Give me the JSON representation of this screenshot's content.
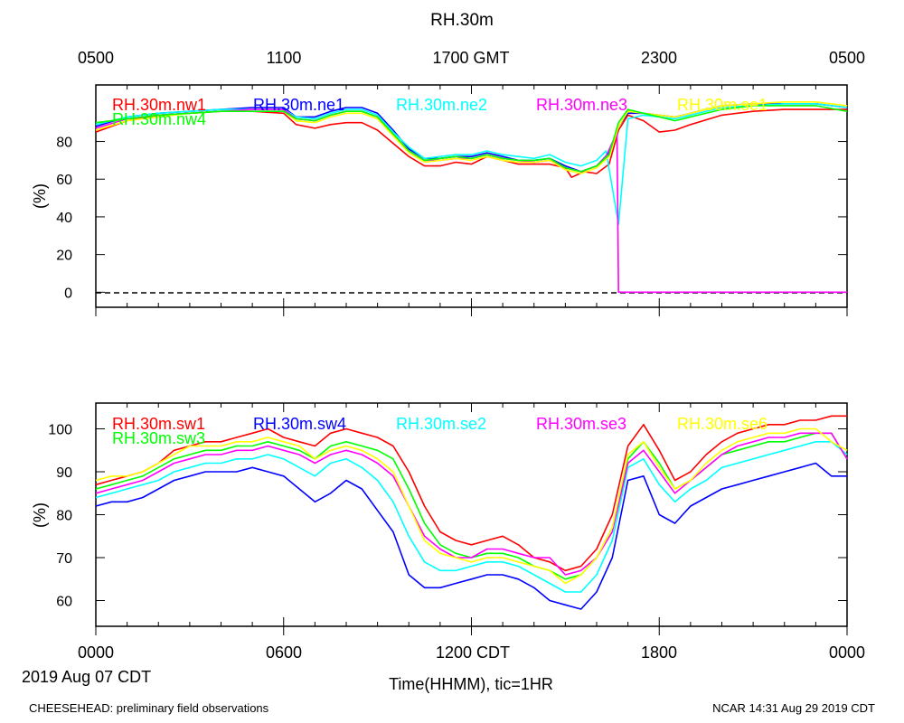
{
  "page": {
    "title": "RH.30m",
    "footer_left": "CHEESEHEAD: preliminary field observations",
    "footer_right": "NCAR 14:31 Aug 29 2019 CDT"
  },
  "axes": {
    "top_ticks": [
      "0500",
      "1100",
      "1700 GMT",
      "2300",
      "0500"
    ],
    "bottom_ticks": [
      "0000",
      "0600",
      "1200 CDT",
      "1800",
      "0000"
    ],
    "date_label": "2019 Aug 07 CDT",
    "x_title": "Time(HHMM), tic=1HR",
    "y_unit": "(%)"
  },
  "chart_data": [
    {
      "type": "line",
      "name": "top-panel",
      "x_unit": "hour CDT",
      "xlim": [
        0,
        24
      ],
      "ylim": [
        -8,
        110
      ],
      "ylabel": "(%)",
      "yticks": [
        0,
        20,
        40,
        60,
        80
      ],
      "zero_line": true,
      "series": [
        {
          "name": "RH.30m.nw1",
          "color": "#ff0000",
          "x": [
            0,
            1,
            2,
            3,
            4,
            5,
            6,
            6.4,
            7,
            7.5,
            8,
            8.5,
            9,
            9.5,
            10,
            10.5,
            11,
            11.5,
            12,
            12.5,
            13,
            13.5,
            14,
            14.5,
            15,
            15.2,
            15.6,
            16,
            16.4,
            16.7,
            17,
            17.5,
            18,
            18.5,
            19,
            20,
            21,
            22,
            23,
            24
          ],
          "y": [
            85,
            91,
            94,
            95,
            96,
            96,
            95,
            89,
            87,
            89,
            90,
            90,
            86,
            79,
            72,
            67,
            67,
            69,
            68,
            72,
            70,
            68,
            68,
            68,
            66,
            61,
            64,
            63,
            68,
            86,
            94,
            91,
            85,
            86,
            89,
            94,
            96,
            97,
            97,
            97
          ]
        },
        {
          "name": "RH.30m.ne1",
          "color": "#0000ff",
          "x": [
            0,
            1,
            2,
            3,
            4,
            5,
            6,
            6.4,
            7,
            7.5,
            8,
            8.5,
            9,
            9.5,
            10,
            10.5,
            11,
            11.5,
            12,
            12.5,
            13,
            13.5,
            14,
            14.5,
            15,
            15.5,
            16,
            16.4,
            16.7,
            17,
            17.5,
            18,
            18.5,
            19,
            20,
            21,
            22,
            23,
            24
          ],
          "y": [
            88,
            93,
            95,
            96,
            97,
            98,
            98,
            93,
            93,
            96,
            98,
            98,
            95,
            86,
            76,
            71,
            71,
            72,
            72,
            74,
            72,
            70,
            70,
            71,
            67,
            64,
            67,
            74,
            88,
            95,
            95,
            94,
            93,
            95,
            99,
            100,
            100,
            100,
            98
          ]
        },
        {
          "name": "RH.30m.ne2",
          "color": "#00ffff",
          "x": [
            0,
            1,
            2,
            3,
            4,
            5,
            6,
            6.4,
            7,
            7.5,
            8,
            8.5,
            9,
            9.5,
            10,
            10.5,
            11,
            11.5,
            12,
            12.5,
            13,
            13.5,
            14,
            14.5,
            15,
            15.5,
            16,
            16.3,
            16.7,
            17,
            17.5,
            18,
            18.5,
            19,
            20,
            21,
            22,
            23,
            24
          ],
          "y": [
            89,
            93,
            95,
            96,
            97,
            97,
            97,
            93,
            92,
            95,
            97,
            97,
            94,
            85,
            77,
            71,
            72,
            73,
            73,
            75,
            73,
            72,
            71,
            73,
            69,
            67,
            70,
            75,
            36,
            92,
            94,
            93,
            92,
            94,
            98,
            99,
            100,
            100,
            98
          ]
        },
        {
          "name": "RH.30m.ne3",
          "color": "#ff00ff",
          "x": [
            0,
            1,
            2,
            3,
            4,
            5,
            6,
            6.4,
            7,
            7.5,
            8,
            8.5,
            9,
            9.5,
            10,
            10.5,
            11,
            11.5,
            12,
            12.5,
            13,
            13.5,
            14,
            14.5,
            15,
            15.5,
            16,
            16.3,
            16.65,
            16.7,
            17,
            18,
            20,
            22,
            24
          ],
          "y": [
            87,
            92,
            94,
            95,
            96,
            97,
            97,
            92,
            91,
            94,
            96,
            96,
            93,
            84,
            75,
            70,
            70,
            71,
            71,
            73,
            71,
            70,
            69,
            70,
            66,
            64,
            67,
            72,
            85,
            0,
            0,
            0,
            0,
            0,
            0
          ]
        },
        {
          "name": "RH.30m.se1",
          "color": "#ffff00",
          "x": [
            0,
            1,
            2,
            3,
            4,
            5,
            6,
            6.4,
            7,
            7.5,
            8,
            8.5,
            9,
            9.5,
            10,
            10.5,
            11,
            11.5,
            12,
            12.5,
            13,
            13.5,
            14,
            14.5,
            15,
            15.5,
            16,
            16.4,
            16.7,
            17,
            17.5,
            18,
            18.5,
            19,
            20,
            21,
            22,
            23,
            24
          ],
          "y": [
            86,
            91,
            93,
            95,
            96,
            96,
            96,
            91,
            90,
            93,
            95,
            95,
            92,
            83,
            74,
            69,
            70,
            71,
            70,
            72,
            70,
            69,
            69,
            70,
            65,
            63,
            66,
            72,
            88,
            96,
            95,
            94,
            93,
            95,
            99,
            100,
            101,
            101,
            99
          ]
        },
        {
          "name": "RH.30m.nw4",
          "color": "#00ff00",
          "x": [
            0,
            1,
            2,
            3,
            4,
            5,
            6,
            6.4,
            7,
            7.5,
            8,
            8.5,
            9,
            9.5,
            10,
            10.5,
            11,
            11.5,
            12,
            12.5,
            13,
            13.5,
            14,
            14.5,
            15,
            15.5,
            16,
            16.4,
            16.7,
            17,
            17.5,
            18,
            18.5,
            19,
            20,
            21,
            22,
            23,
            24
          ],
          "y": [
            90,
            92,
            94,
            95,
            96,
            96,
            96,
            92,
            91,
            94,
            96,
            96,
            93,
            84,
            75,
            70,
            71,
            72,
            71,
            73,
            71,
            70,
            70,
            71,
            66,
            64,
            67,
            73,
            90,
            97,
            95,
            93,
            91,
            93,
            97,
            99,
            99,
            99,
            96
          ]
        }
      ]
    },
    {
      "type": "line",
      "name": "bottom-panel",
      "x_unit": "hour CDT",
      "xlim": [
        0,
        24
      ],
      "ylim": [
        54,
        106
      ],
      "ylabel": "(%)",
      "yticks": [
        60,
        70,
        80,
        90,
        100
      ],
      "series": [
        {
          "name": "RH.30m.sw1",
          "color": "#ff0000",
          "x": [
            0,
            0.5,
            1,
            1.5,
            2,
            2.5,
            3,
            3.5,
            4,
            4.5,
            5,
            5.5,
            6,
            6.5,
            7,
            7.5,
            8,
            8.5,
            9,
            9.5,
            10,
            10.5,
            11,
            11.5,
            12,
            12.5,
            13,
            13.5,
            14,
            14.5,
            15,
            15.5,
            16,
            16.5,
            17,
            17.5,
            18,
            18.5,
            19,
            19.5,
            20,
            20.5,
            21,
            21.5,
            22,
            22.5,
            23,
            23.5,
            24
          ],
          "y": [
            87,
            88,
            89,
            90,
            92,
            95,
            96,
            97,
            97,
            98,
            99,
            100,
            98,
            97,
            96,
            99,
            100,
            99,
            98,
            96,
            90,
            82,
            76,
            74,
            73,
            74,
            75,
            73,
            70,
            69,
            67,
            68,
            72,
            80,
            96,
            101,
            95,
            88,
            90,
            94,
            97,
            99,
            100,
            101,
            101,
            102,
            102,
            103,
            103
          ]
        },
        {
          "name": "RH.30m.sw3",
          "color": "#00ff00",
          "x": [
            0,
            0.5,
            1,
            1.5,
            2,
            2.5,
            3,
            3.5,
            4,
            4.5,
            5,
            5.5,
            6,
            6.5,
            7,
            7.5,
            8,
            8.5,
            9,
            9.5,
            10,
            10.5,
            11,
            11.5,
            12,
            12.5,
            13,
            13.5,
            14,
            14.5,
            15,
            15.5,
            16,
            16.5,
            17,
            17.5,
            18,
            18.5,
            19,
            19.5,
            20,
            20.5,
            21,
            21.5,
            22,
            22.5,
            23,
            23.5,
            24
          ],
          "y": [
            86,
            87,
            88,
            89,
            91,
            93,
            94,
            95,
            95,
            96,
            96,
            97,
            96,
            95,
            93,
            96,
            97,
            96,
            95,
            93,
            86,
            78,
            73,
            71,
            70,
            71,
            71,
            70,
            68,
            67,
            65,
            66,
            70,
            77,
            93,
            97,
            92,
            86,
            88,
            91,
            94,
            95,
            96,
            97,
            97,
            98,
            99,
            99,
            93
          ]
        },
        {
          "name": "RH.30m.sw4",
          "color": "#0000ff",
          "x": [
            0,
            0.5,
            1,
            1.5,
            2,
            2.5,
            3,
            3.5,
            4,
            4.5,
            5,
            5.5,
            6,
            6.5,
            7,
            7.5,
            8,
            8.5,
            9,
            9.5,
            10,
            10.5,
            11,
            11.5,
            12,
            12.5,
            13,
            13.5,
            14,
            14.5,
            15,
            15.5,
            16,
            16.5,
            17,
            17.5,
            18,
            18.5,
            19,
            19.5,
            20,
            20.5,
            21,
            21.5,
            22,
            22.5,
            23,
            23.5,
            24
          ],
          "y": [
            82,
            83,
            83,
            84,
            86,
            88,
            89,
            90,
            90,
            90,
            91,
            90,
            89,
            86,
            83,
            85,
            88,
            86,
            81,
            76,
            66,
            63,
            63,
            64,
            65,
            66,
            66,
            65,
            63,
            60,
            59,
            58,
            62,
            70,
            88,
            89,
            80,
            78,
            82,
            84,
            86,
            87,
            88,
            89,
            90,
            91,
            92,
            89,
            89
          ]
        },
        {
          "name": "RH.30m.se2",
          "color": "#00ffff",
          "x": [
            0,
            0.5,
            1,
            1.5,
            2,
            2.5,
            3,
            3.5,
            4,
            4.5,
            5,
            5.5,
            6,
            6.5,
            7,
            7.5,
            8,
            8.5,
            9,
            9.5,
            10,
            10.5,
            11,
            11.5,
            12,
            12.5,
            13,
            13.5,
            14,
            14.5,
            15,
            15.5,
            16,
            16.5,
            17,
            17.5,
            18,
            18.5,
            19,
            19.5,
            20,
            20.5,
            21,
            21.5,
            22,
            22.5,
            23,
            23.5,
            24
          ],
          "y": [
            84,
            85,
            86,
            87,
            88,
            90,
            91,
            92,
            92,
            93,
            93,
            94,
            93,
            91,
            89,
            92,
            93,
            91,
            88,
            83,
            75,
            69,
            67,
            67,
            68,
            69,
            69,
            68,
            66,
            64,
            62,
            62,
            66,
            74,
            91,
            93,
            87,
            83,
            86,
            88,
            91,
            92,
            93,
            94,
            95,
            96,
            97,
            97,
            94
          ]
        },
        {
          "name": "RH.30m.se3",
          "color": "#ff00ff",
          "x": [
            0,
            0.5,
            1,
            1.5,
            2,
            2.5,
            3,
            3.5,
            4,
            4.5,
            5,
            5.5,
            6,
            6.5,
            7,
            7.5,
            8,
            8.5,
            9,
            9.5,
            10,
            10.5,
            11,
            11.5,
            12,
            12.5,
            13,
            13.5,
            14,
            14.5,
            15,
            15.5,
            16,
            16.5,
            17,
            17.5,
            18,
            18.5,
            19,
            19.5,
            20,
            20.5,
            21,
            21.5,
            22,
            22.5,
            23,
            23.5,
            24
          ],
          "y": [
            85,
            86,
            87,
            88,
            90,
            92,
            93,
            94,
            94,
            95,
            95,
            96,
            95,
            94,
            92,
            94,
            95,
            94,
            92,
            89,
            82,
            75,
            72,
            70,
            70,
            72,
            72,
            71,
            70,
            70,
            66,
            67,
            70,
            76,
            92,
            95,
            90,
            85,
            88,
            91,
            94,
            96,
            97,
            98,
            98,
            99,
            99,
            99,
            93
          ]
        },
        {
          "name": "RH.30m.se6",
          "color": "#ffff00",
          "x": [
            0,
            0.5,
            1,
            1.5,
            2,
            2.5,
            3,
            3.5,
            4,
            4.5,
            5,
            5.5,
            6,
            6.5,
            7,
            7.5,
            8,
            8.5,
            9,
            9.5,
            10,
            10.5,
            11,
            11.5,
            12,
            12.5,
            13,
            13.5,
            14,
            14.5,
            15,
            15.5,
            16,
            16.5,
            17,
            17.5,
            18,
            18.5,
            19,
            19.5,
            20,
            20.5,
            21,
            21.5,
            22,
            22.5,
            23,
            23.5,
            24
          ],
          "y": [
            88,
            89,
            89,
            90,
            92,
            94,
            96,
            96,
            96,
            97,
            97,
            98,
            97,
            96,
            93,
            95,
            96,
            95,
            93,
            90,
            82,
            74,
            71,
            70,
            69,
            70,
            70,
            69,
            68,
            67,
            64,
            66,
            70,
            77,
            94,
            97,
            91,
            86,
            88,
            92,
            95,
            97,
            98,
            99,
            99,
            100,
            100,
            97,
            95
          ]
        }
      ]
    }
  ]
}
